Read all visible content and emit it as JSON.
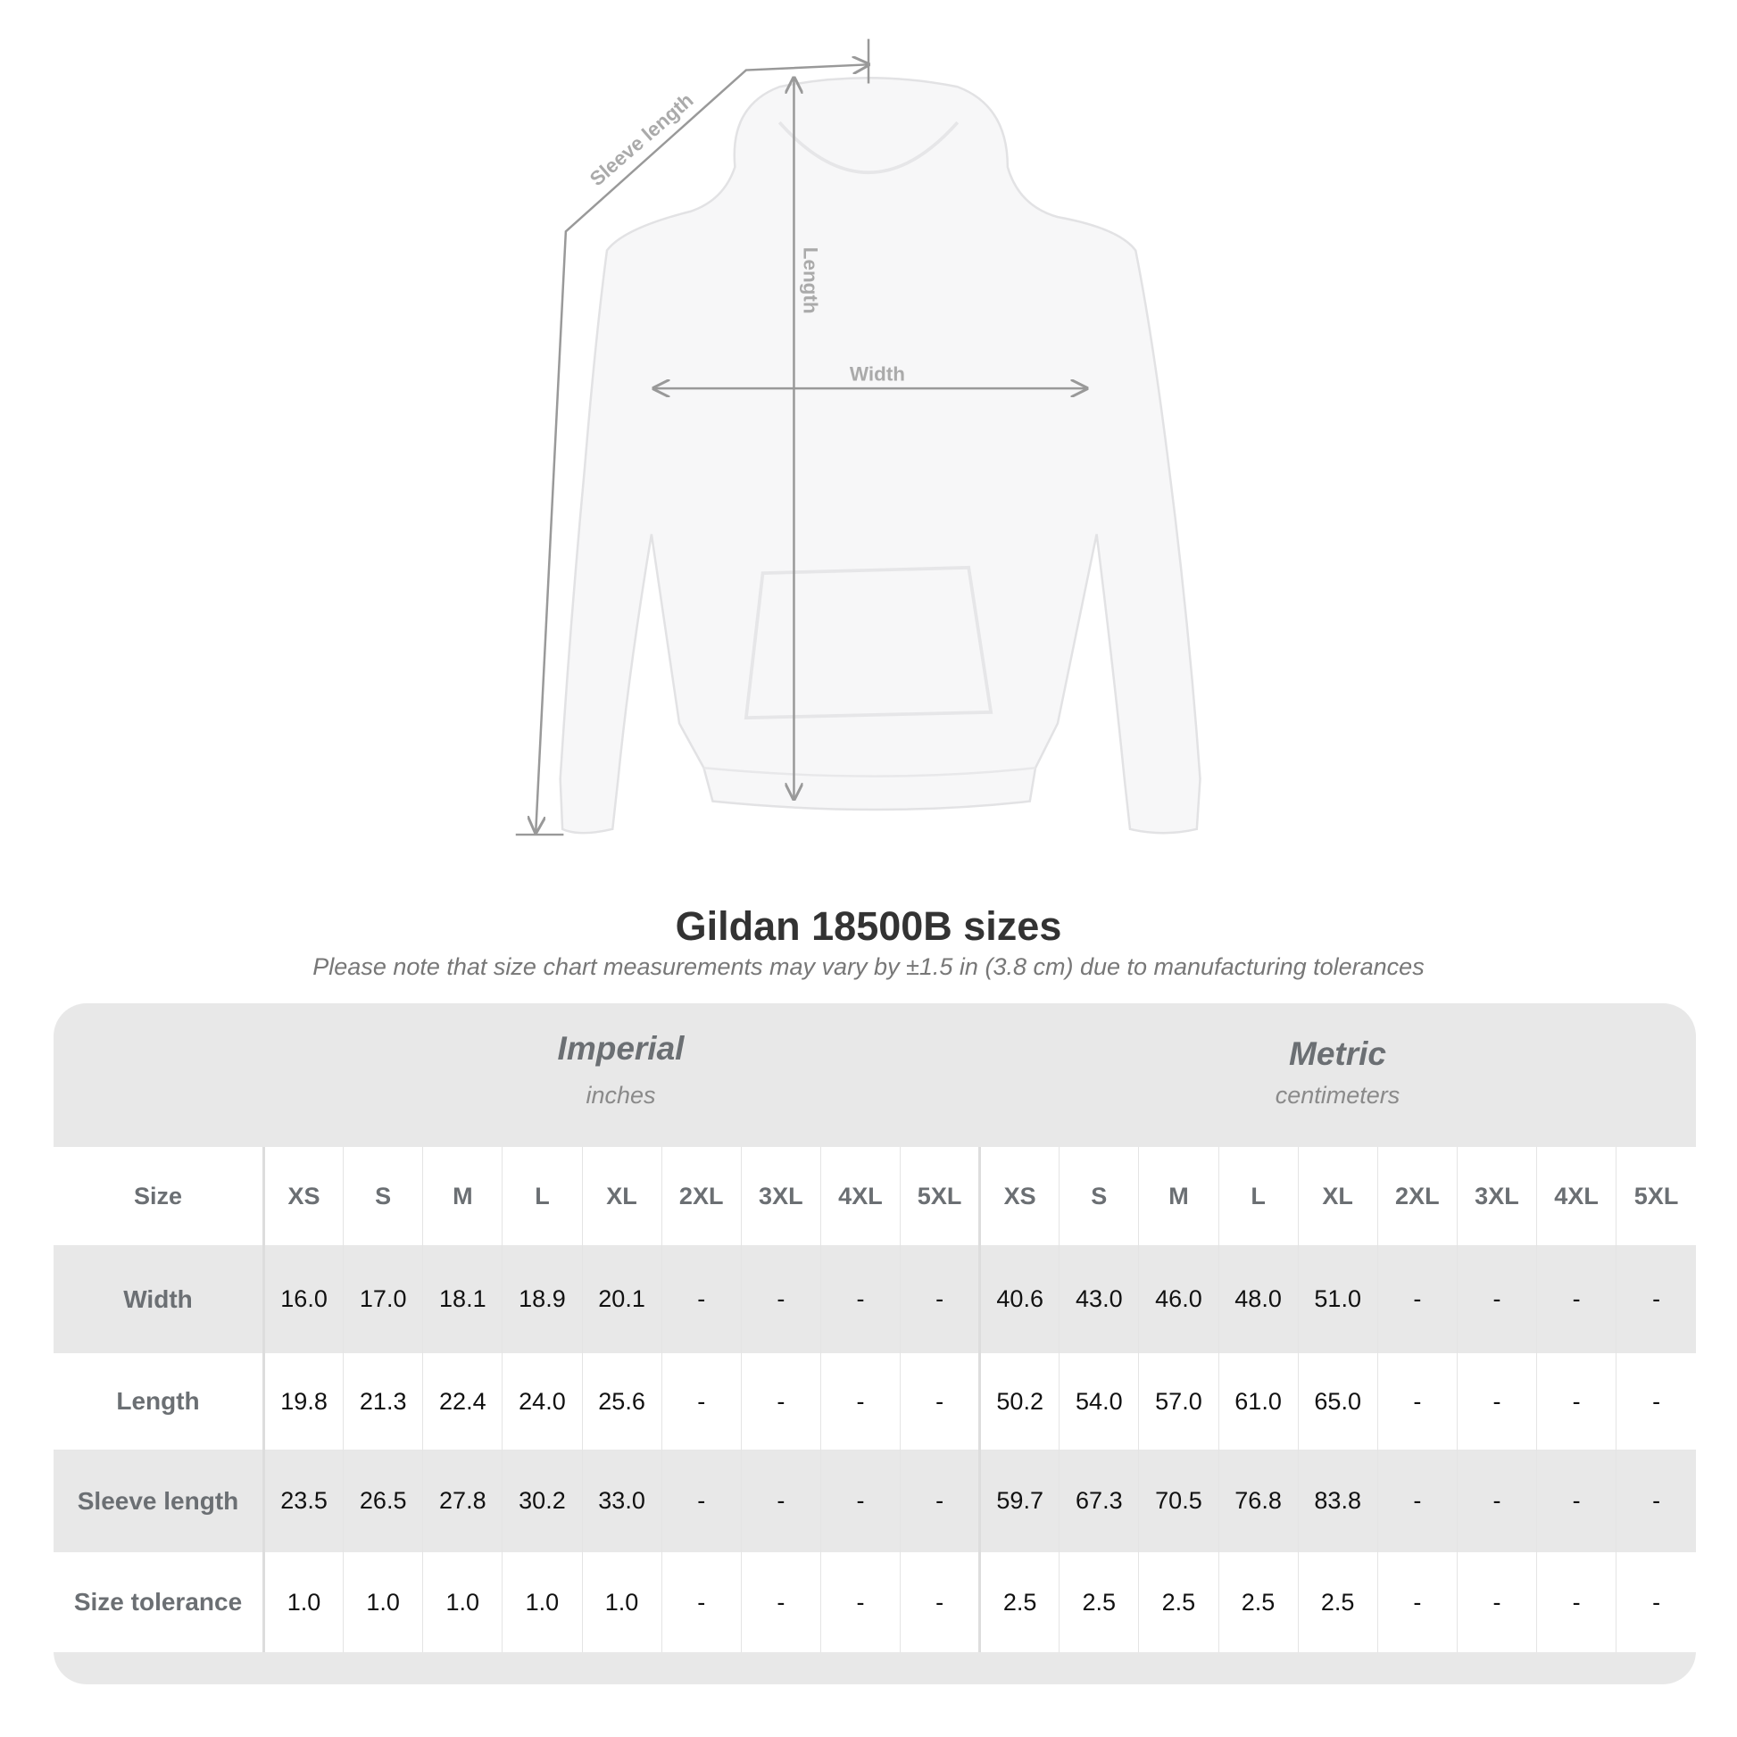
{
  "diagram": {
    "sleeve_label": "Sleeve length",
    "length_label": "Length",
    "width_label": "Width"
  },
  "title": "Gildan 18500B sizes",
  "subtitle": "Please note that size chart measurements may vary by ±1.5 in (3.8 cm) due to manufacturing tolerances",
  "imperial": {
    "name": "Imperial",
    "unit": "inches"
  },
  "metric": {
    "name": "Metric",
    "unit": "centimeters"
  },
  "size_header": "Size",
  "sizes": [
    "XS",
    "S",
    "M",
    "L",
    "XL",
    "2XL",
    "3XL",
    "4XL",
    "5XL"
  ],
  "rows": [
    {
      "label": "Width",
      "imperial": [
        "16.0",
        "17.0",
        "18.1",
        "18.9",
        "20.1",
        "-",
        "-",
        "-",
        "-"
      ],
      "metric": [
        "40.6",
        "43.0",
        "46.0",
        "48.0",
        "51.0",
        "-",
        "-",
        "-",
        "-"
      ]
    },
    {
      "label": "Length",
      "imperial": [
        "19.8",
        "21.3",
        "22.4",
        "24.0",
        "25.6",
        "-",
        "-",
        "-",
        "-"
      ],
      "metric": [
        "50.2",
        "54.0",
        "57.0",
        "61.0",
        "65.0",
        "-",
        "-",
        "-",
        "-"
      ]
    },
    {
      "label": "Sleeve length",
      "imperial": [
        "23.5",
        "26.5",
        "27.8",
        "30.2",
        "33.0",
        "-",
        "-",
        "-",
        "-"
      ],
      "metric": [
        "59.7",
        "67.3",
        "70.5",
        "76.8",
        "83.8",
        "-",
        "-",
        "-",
        "-"
      ]
    },
    {
      "label": "Size tolerance",
      "imperial": [
        "1.0",
        "1.0",
        "1.0",
        "1.0",
        "1.0",
        "-",
        "-",
        "-",
        "-"
      ],
      "metric": [
        "2.5",
        "2.5",
        "2.5",
        "2.5",
        "2.5",
        "-",
        "-",
        "-",
        "-"
      ]
    }
  ],
  "colors": {
    "header_gray": "#e8e8e8",
    "label_text": "#6b6f73",
    "line": "#999999"
  }
}
